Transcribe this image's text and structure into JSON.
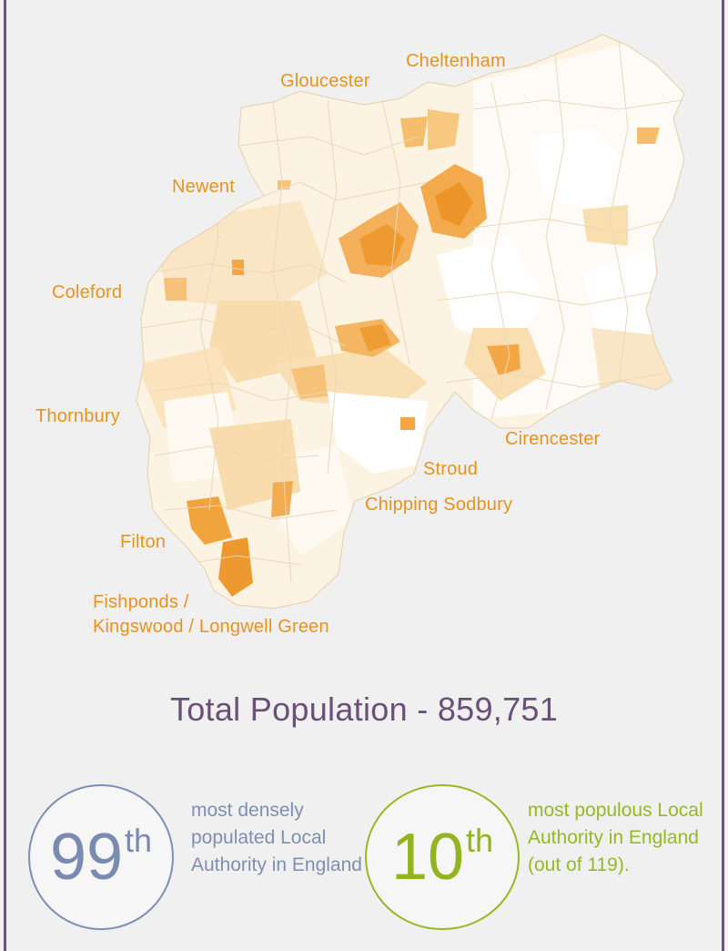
{
  "map": {
    "place_labels": {
      "gloucester": "Gloucester",
      "cheltenham": "Cheltenham",
      "newent": "Newent",
      "coleford": "Coleford",
      "thornbury": "Thornbury",
      "cirencester": "Cirencester",
      "stroud": "Stroud",
      "chipping_sodbury": "Chipping Sodbury",
      "filton": "Filton",
      "fishponds_line1": "Fishponds /",
      "fishponds_line2": "Kingswood / Longwell Green"
    },
    "colors": {
      "low": "#fefbf4",
      "mid": "#f8d8a2",
      "high": "#f0a030",
      "label": "#e8921c",
      "frame": "#6c5478"
    }
  },
  "summary": {
    "total_label": "Total Population - 859,751"
  },
  "stats": {
    "density": {
      "rank_number": "99",
      "rank_suffix": "th",
      "description": "most densely populated Local Authority in England",
      "color": "#7d8fb2"
    },
    "population": {
      "rank_number": "10",
      "rank_suffix": "th",
      "description": "most populous Local Authority in England (out of 119).",
      "color": "#96b824"
    }
  }
}
